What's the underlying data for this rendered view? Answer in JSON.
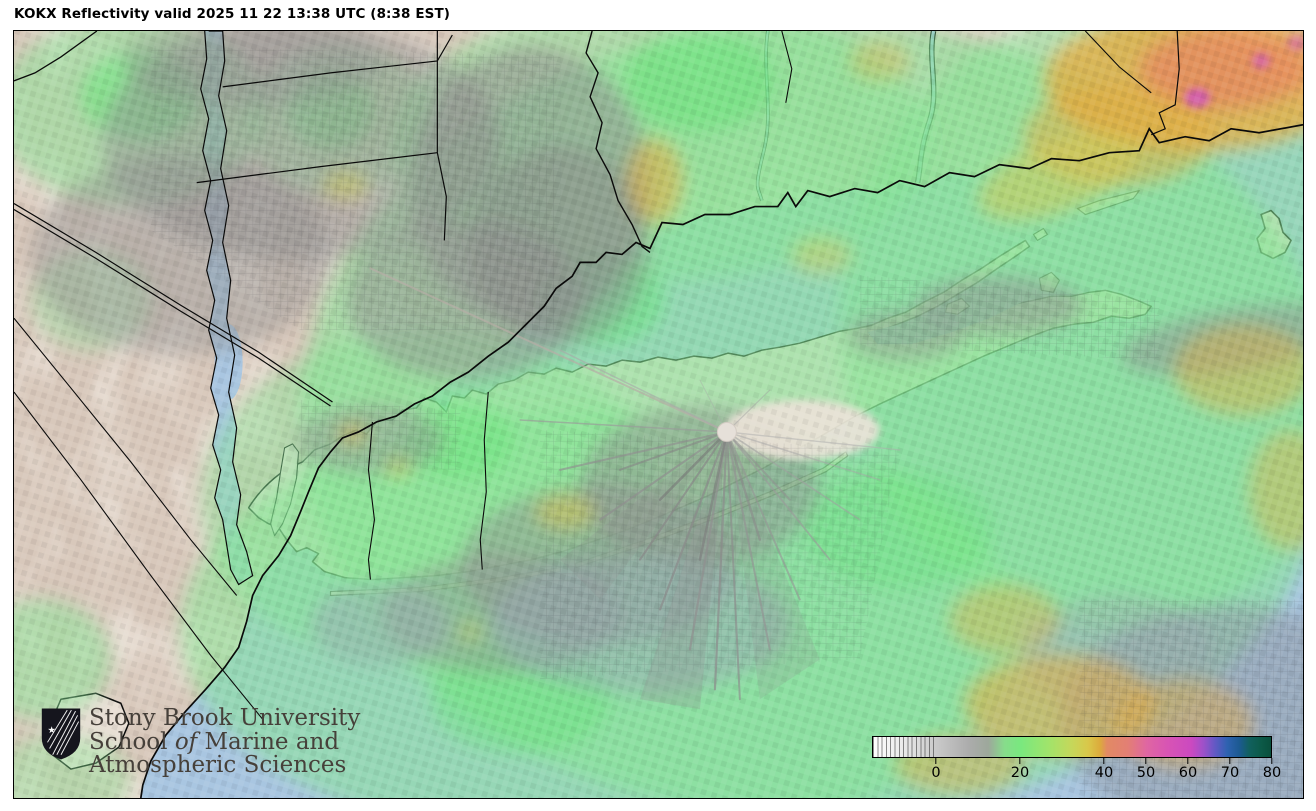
{
  "title": "KOKX Reflectivity valid 2025 11 22 13:38 UTC (8:38 EST)",
  "map": {
    "radar_site": {
      "station": "KOKX",
      "marker": "white-dot",
      "marker_color": "#e6e0d9"
    },
    "region": "Long Island / NYC / Connecticut coastal area"
  },
  "palette": {
    "land": "#e9dfd5",
    "water": "#a9c6e1",
    "terrain_shade": "#c8b2a2",
    "echo_light_green": "#86e594",
    "echo_bright_green": "#5fe573",
    "echo_gray": "#909090",
    "echo_blue_gray": "#9fb0c2",
    "echo_yellow": "#d9c84e",
    "echo_orange": "#e5a93e",
    "echo_salmon": "#e8845f",
    "echo_magenta": "#cf54bd",
    "border_line": "#000000"
  },
  "colorbar": {
    "ticks": [
      {
        "label": "0",
        "pct": 16.0
      },
      {
        "label": "20",
        "pct": 37.0
      },
      {
        "label": "40",
        "pct": 58.0
      },
      {
        "label": "50",
        "pct": 68.5
      },
      {
        "label": "60",
        "pct": 79.0
      },
      {
        "label": "70",
        "pct": 89.5
      },
      {
        "label": "80",
        "pct": 100.0
      }
    ],
    "hatch_end_pct": 16,
    "gradient_stops": [
      {
        "pct": 0,
        "color": "#ffffff"
      },
      {
        "pct": 7,
        "color": "#ececec"
      },
      {
        "pct": 16,
        "color": "#c9c9c9"
      },
      {
        "pct": 24,
        "color": "#acacac"
      },
      {
        "pct": 29,
        "color": "#9da89b"
      },
      {
        "pct": 33,
        "color": "#87dc8b"
      },
      {
        "pct": 37,
        "color": "#79e87f"
      },
      {
        "pct": 44,
        "color": "#a0e46b"
      },
      {
        "pct": 50,
        "color": "#c6d75a"
      },
      {
        "pct": 54,
        "color": "#d9c84a"
      },
      {
        "pct": 57,
        "color": "#dcab3c"
      },
      {
        "pct": 58.8,
        "color": "#e28a64"
      },
      {
        "pct": 64,
        "color": "#e37f74"
      },
      {
        "pct": 68.8,
        "color": "#df66a2"
      },
      {
        "pct": 74,
        "color": "#d854b4"
      },
      {
        "pct": 80,
        "color": "#cb49c0"
      },
      {
        "pct": 83,
        "color": "#9e51c9"
      },
      {
        "pct": 86,
        "color": "#6159c4"
      },
      {
        "pct": 89,
        "color": "#2e62b0"
      },
      {
        "pct": 92,
        "color": "#1c5a92"
      },
      {
        "pct": 94.5,
        "color": "#11605f"
      },
      {
        "pct": 97.5,
        "color": "#0c5a48"
      },
      {
        "pct": 100,
        "color": "#094f3c"
      }
    ]
  },
  "logo": {
    "line1": "Stony Brook University",
    "line2_pre": "School ",
    "line2_italic": "of",
    "line2_post": " Marine and",
    "line3": "Atmospheric Sciences"
  }
}
